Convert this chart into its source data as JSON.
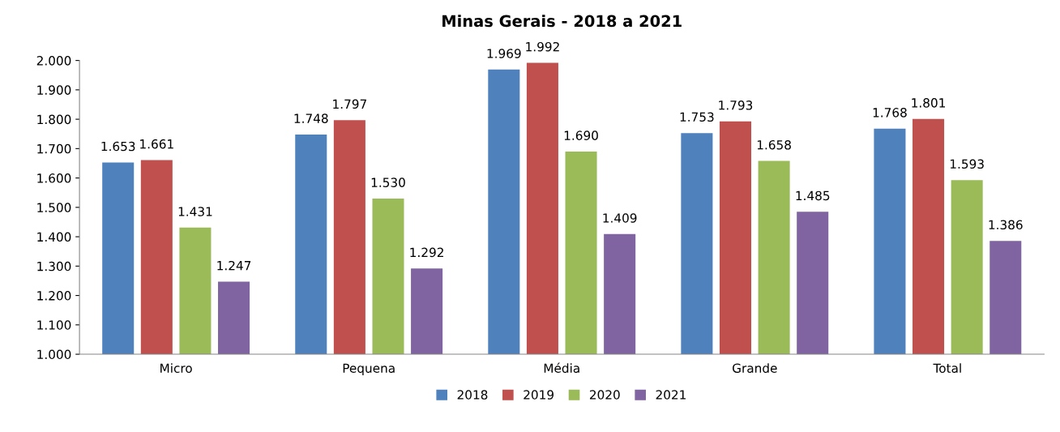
{
  "chart_data": {
    "type": "bar",
    "title": "Minas Gerais - 2018 a 2021",
    "categories": [
      "Micro",
      "Pequena",
      "Média",
      "Grande",
      "Total"
    ],
    "series": [
      {
        "name": "2018",
        "color": "#4f81bd",
        "values": [
          1653,
          1748,
          1969,
          1753,
          1768
        ],
        "value_labels": [
          "1.653",
          "1.748",
          "1.969",
          "1.753",
          "1.768"
        ]
      },
      {
        "name": "2019",
        "color": "#c0504d",
        "values": [
          1661,
          1797,
          1992,
          1793,
          1801
        ],
        "value_labels": [
          "1.661",
          "1.797",
          "1.992",
          "1.793",
          "1.801"
        ]
      },
      {
        "name": "2020",
        "color": "#9bbb59",
        "values": [
          1431,
          1530,
          1690,
          1658,
          1593
        ],
        "value_labels": [
          "1.431",
          "1.530",
          "1.690",
          "1.658",
          "1.593"
        ]
      },
      {
        "name": "2021",
        "color": "#8064a2",
        "values": [
          1247,
          1292,
          1409,
          1485,
          1386
        ],
        "value_labels": [
          "1.247",
          "1.292",
          "1.409",
          "1.485",
          "1.386"
        ]
      }
    ],
    "ylim": [
      1000,
      2000
    ],
    "yticks": [
      {
        "value": 1000,
        "label": "1.000"
      },
      {
        "value": 1100,
        "label": "1.100"
      },
      {
        "value": 1200,
        "label": "1.200"
      },
      {
        "value": 1300,
        "label": "1.300"
      },
      {
        "value": 1400,
        "label": "1.400"
      },
      {
        "value": 1500,
        "label": "1.500"
      },
      {
        "value": 1600,
        "label": "1.600"
      },
      {
        "value": 1700,
        "label": "1.700"
      },
      {
        "value": 1800,
        "label": "1.800"
      },
      {
        "value": 1900,
        "label": "1.900"
      },
      {
        "value": 2000,
        "label": "2.000"
      }
    ],
    "grid": false,
    "legend": "bottom"
  }
}
